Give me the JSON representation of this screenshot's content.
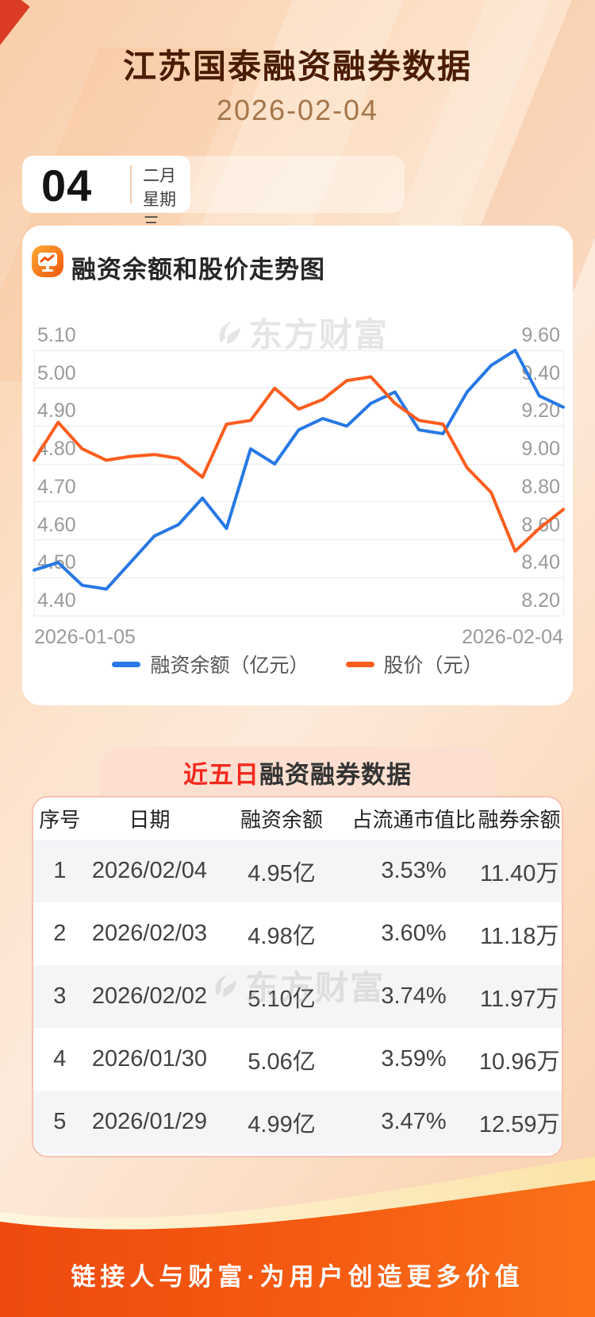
{
  "header": {
    "title": "江苏国泰融资融券数据",
    "date": "2026-02-04"
  },
  "date_card": {
    "day": "04",
    "month": "二月",
    "weekday": "星期三"
  },
  "chart_section": {
    "icon": "trend-monitor-icon",
    "title": "融资余额和股价走势图"
  },
  "watermark": {
    "brand": "东方财富"
  },
  "chart_data": {
    "type": "line",
    "title": "融资余额和股价走势图",
    "x_start_label": "2026-01-05",
    "x_end_label": "2026-02-04",
    "left_axis": {
      "min": 4.4,
      "max": 5.1,
      "tick_labels": [
        "5.10",
        "5.00",
        "4.90",
        "4.80",
        "4.70",
        "4.60",
        "4.50",
        "4.40"
      ]
    },
    "right_axis": {
      "min": 8.2,
      "max": 9.6,
      "tick_labels": [
        "9.60",
        "9.40",
        "9.20",
        "9.00",
        "8.80",
        "8.60",
        "8.40",
        "8.20"
      ]
    },
    "grid": true,
    "legend_position": "bottom",
    "series": [
      {
        "name": "融资余额（亿元）",
        "axis": "left",
        "color": "#2878e5",
        "values": [
          4.52,
          4.54,
          4.48,
          4.47,
          4.54,
          4.61,
          4.64,
          4.71,
          4.63,
          4.84,
          4.8,
          4.89,
          4.92,
          4.9,
          4.96,
          4.99,
          4.89,
          4.88,
          4.99,
          5.06,
          5.1,
          4.98,
          4.95
        ]
      },
      {
        "name": "股价（元）",
        "axis": "right",
        "color": "#fb5d1e",
        "values": [
          9.02,
          9.22,
          9.08,
          9.02,
          9.04,
          9.05,
          9.03,
          8.93,
          9.21,
          9.23,
          9.4,
          9.29,
          9.34,
          9.44,
          9.46,
          9.32,
          9.23,
          9.21,
          8.98,
          8.85,
          8.54,
          8.66,
          8.76
        ]
      }
    ]
  },
  "table_section": {
    "title_highlight": "近五日",
    "title_rest": "融资融券数据",
    "columns": [
      "序号",
      "日期",
      "融资余额",
      "占流通市值比",
      "融券余额"
    ],
    "rows": [
      [
        "1",
        "2026/02/04",
        "4.95亿",
        "3.53%",
        "11.40万"
      ],
      [
        "2",
        "2026/02/03",
        "4.98亿",
        "3.60%",
        "11.18万"
      ],
      [
        "3",
        "2026/02/02",
        "5.10亿",
        "3.74%",
        "11.97万"
      ],
      [
        "4",
        "2026/01/30",
        "5.06亿",
        "3.59%",
        "10.96万"
      ],
      [
        "5",
        "2026/01/29",
        "4.99亿",
        "3.47%",
        "12.59万"
      ]
    ]
  },
  "footer": {
    "slogan": "链接人与财富·为用户创造更多价值"
  }
}
